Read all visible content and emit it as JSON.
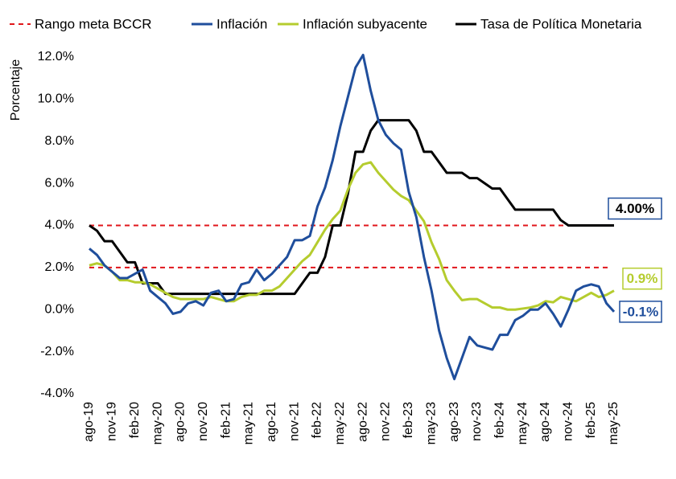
{
  "chart_data": {
    "type": "line",
    "y_label": "Porcentaje",
    "categories": [
      "ago-19",
      null,
      null,
      "nov-19",
      null,
      null,
      "feb-20",
      null,
      null,
      "may-20",
      null,
      null,
      "ago-20",
      null,
      null,
      "nov-20",
      null,
      null,
      "feb-21",
      null,
      null,
      "may-21",
      null,
      null,
      "ago-21",
      null,
      null,
      "nov-21",
      null,
      null,
      "feb-22",
      null,
      null,
      "may-22",
      null,
      null,
      "ago-22",
      null,
      null,
      "nov-22",
      null,
      null,
      "feb-23",
      null,
      null,
      "may-23",
      null,
      null,
      "ago-23",
      null,
      null,
      "nov-23",
      null,
      null,
      "feb-24",
      null,
      null,
      "may-24",
      null,
      null,
      "ago-24",
      null,
      null,
      "nov-24",
      null,
      null,
      "feb-25",
      null,
      null,
      "may-25"
    ],
    "ylim": [
      -4,
      12
    ],
    "yticks": [
      {
        "value": -4,
        "label": "-4.0%"
      },
      {
        "value": -2,
        "label": "-2.0%"
      },
      {
        "value": 0,
        "label": "0.0%"
      },
      {
        "value": 2,
        "label": "2.0%"
      },
      {
        "value": 4,
        "label": "4.0%"
      },
      {
        "value": 6,
        "label": "6.0%"
      },
      {
        "value": 8,
        "label": "8.0%"
      },
      {
        "value": 10,
        "label": "10.0%"
      },
      {
        "value": 12,
        "label": "12.0%"
      }
    ],
    "target_band": {
      "name": "Rango meta BCCR",
      "color": "#e0161b",
      "values": [
        2,
        4
      ]
    },
    "series": [
      {
        "name": "Inflación",
        "color": "#1f4e9c",
        "values": [
          2.9,
          2.6,
          2.1,
          1.8,
          1.5,
          1.5,
          1.7,
          1.9,
          0.9,
          0.6,
          0.3,
          -0.2,
          -0.1,
          0.3,
          0.4,
          0.2,
          0.8,
          0.9,
          0.4,
          0.5,
          1.2,
          1.3,
          1.9,
          1.4,
          1.7,
          2.1,
          2.5,
          3.3,
          3.3,
          3.5,
          4.9,
          5.8,
          7.1,
          8.7,
          10.1,
          11.5,
          12.1,
          10.4,
          9.0,
          8.3,
          7.9,
          7.6,
          5.6,
          4.4,
          2.5,
          0.9,
          -1.0,
          -2.3,
          -3.3,
          -2.3,
          -1.3,
          -1.7,
          -1.8,
          -1.9,
          -1.2,
          -1.2,
          -0.5,
          -0.3,
          0.0,
          0.0,
          0.3,
          -0.2,
          -0.8,
          0.0,
          0.9,
          1.1,
          1.2,
          1.1,
          0.3,
          -0.1
        ],
        "value_labels": [
          null,
          null,
          null,
          null,
          null,
          null,
          null,
          null,
          null,
          null,
          null,
          null,
          null,
          null,
          null,
          null,
          null,
          null,
          null,
          null,
          null,
          null,
          null,
          null,
          null,
          null,
          null,
          null,
          null,
          null,
          null,
          null,
          null,
          null,
          null,
          null,
          null,
          null,
          null,
          null,
          null,
          null,
          null,
          null,
          null,
          null,
          null,
          null,
          null,
          null,
          null,
          null,
          null,
          null,
          null,
          null,
          null,
          null,
          null,
          null,
          null,
          null,
          null,
          null,
          null,
          null,
          null,
          null,
          null,
          "-0.1%"
        ]
      },
      {
        "name": "Inflación subyacente",
        "color": "#b5cc2e",
        "values": [
          2.1,
          2.2,
          2.1,
          1.8,
          1.4,
          1.4,
          1.3,
          1.3,
          1.2,
          1.0,
          0.8,
          0.6,
          0.5,
          0.5,
          0.5,
          0.5,
          0.6,
          0.5,
          0.4,
          0.4,
          0.6,
          0.7,
          0.7,
          0.9,
          0.9,
          1.1,
          1.5,
          1.9,
          2.3,
          2.6,
          3.2,
          3.8,
          4.3,
          4.7,
          5.7,
          6.5,
          6.9,
          7.0,
          6.5,
          6.1,
          5.7,
          5.4,
          5.2,
          4.7,
          4.2,
          3.2,
          2.4,
          1.4,
          0.9,
          0.45,
          0.5,
          0.5,
          0.3,
          0.1,
          0.1,
          0.0,
          0.0,
          0.05,
          0.1,
          0.2,
          0.4,
          0.35,
          0.6,
          0.5,
          0.4,
          0.6,
          0.8,
          0.6,
          0.7,
          0.9
        ],
        "value_labels": [
          null,
          null,
          null,
          null,
          null,
          null,
          null,
          null,
          null,
          null,
          null,
          null,
          null,
          null,
          null,
          null,
          null,
          null,
          null,
          null,
          null,
          null,
          null,
          null,
          null,
          null,
          null,
          null,
          null,
          null,
          null,
          null,
          null,
          null,
          null,
          null,
          null,
          null,
          null,
          null,
          null,
          null,
          null,
          null,
          null,
          null,
          null,
          null,
          null,
          null,
          null,
          null,
          null,
          null,
          null,
          null,
          null,
          null,
          null,
          null,
          null,
          null,
          null,
          null,
          null,
          null,
          null,
          null,
          null,
          "0.9%"
        ]
      },
      {
        "name": "Tasa de Política Monetaria",
        "color": "#000000",
        "values": [
          4.0,
          3.75,
          3.25,
          3.25,
          2.75,
          2.25,
          2.25,
          1.25,
          1.25,
          1.25,
          0.75,
          0.75,
          0.75,
          0.75,
          0.75,
          0.75,
          0.75,
          0.75,
          0.75,
          0.75,
          0.75,
          0.75,
          0.75,
          0.75,
          0.75,
          0.75,
          0.75,
          0.75,
          1.25,
          1.75,
          1.75,
          2.5,
          4.0,
          4.0,
          5.5,
          7.5,
          7.5,
          8.5,
          9.0,
          9.0,
          9.0,
          9.0,
          9.0,
          8.5,
          7.5,
          7.5,
          7.0,
          6.5,
          6.5,
          6.5,
          6.25,
          6.25,
          6.0,
          5.75,
          5.75,
          5.25,
          4.75,
          4.75,
          4.75,
          4.75,
          4.75,
          4.75,
          4.25,
          4.0,
          4.0,
          4.0,
          4.0,
          4.0,
          4.0,
          4.0
        ],
        "value_labels": [
          null,
          null,
          null,
          null,
          null,
          null,
          null,
          null,
          null,
          null,
          null,
          null,
          null,
          null,
          null,
          null,
          null,
          null,
          null,
          null,
          null,
          null,
          null,
          null,
          null,
          null,
          null,
          null,
          null,
          null,
          null,
          null,
          null,
          null,
          null,
          null,
          null,
          null,
          null,
          null,
          null,
          null,
          null,
          null,
          null,
          null,
          null,
          null,
          null,
          null,
          null,
          null,
          null,
          null,
          null,
          null,
          null,
          null,
          null,
          null,
          null,
          null,
          null,
          null,
          null,
          null,
          null,
          null,
          null,
          "4.00%"
        ]
      }
    ]
  }
}
